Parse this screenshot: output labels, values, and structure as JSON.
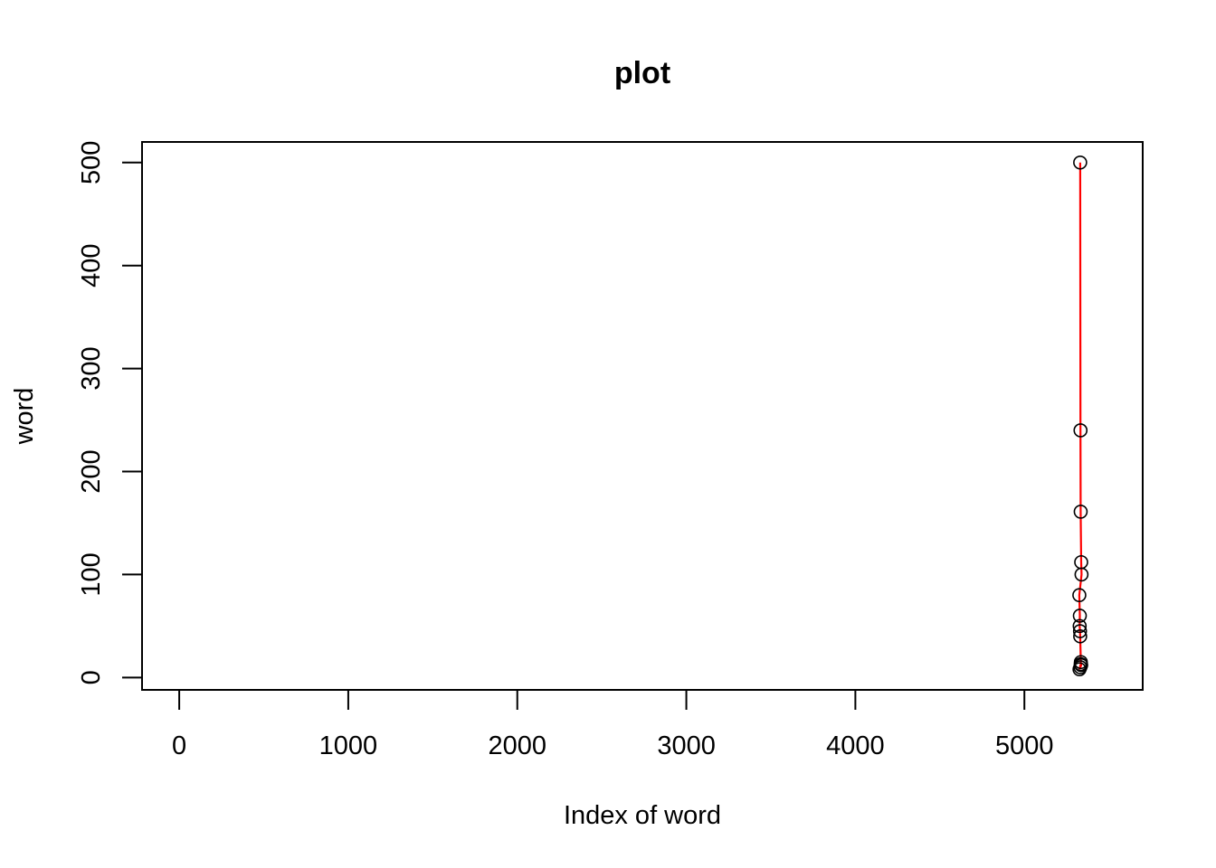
{
  "chart_data": {
    "type": "scatter",
    "title": "plot",
    "xlabel": "Index of word",
    "ylabel": "word",
    "xlim": [
      -220,
      5700
    ],
    "ylim": [
      -12,
      520
    ],
    "x_ticks": [
      0,
      1000,
      2000,
      3000,
      4000,
      5000
    ],
    "y_ticks": [
      0,
      100,
      200,
      300,
      400,
      500
    ],
    "x_tick_labels": [
      "0",
      "1000",
      "2000",
      "3000",
      "4000",
      "5000"
    ],
    "y_tick_labels": [
      "0",
      "100",
      "200",
      "300",
      "400",
      "500"
    ],
    "grid": false,
    "points": {
      "x": [
        5330,
        5332,
        5333,
        5336,
        5338,
        5325,
        5328,
        5327,
        5329,
        5330,
        5334,
        5336,
        5331,
        5326,
        5333
      ],
      "y": [
        500,
        240,
        161,
        112,
        100,
        80,
        60,
        50,
        45,
        40,
        15,
        12,
        10,
        8,
        13
      ]
    },
    "line": {
      "color": "#ff0000",
      "x": [
        5330,
        5332,
        5333,
        5336,
        5338,
        5325,
        5328,
        5327,
        5329,
        5330,
        5334,
        5336,
        5331,
        5326,
        5333
      ],
      "y": [
        500,
        240,
        161,
        112,
        100,
        80,
        60,
        50,
        45,
        40,
        15,
        12,
        10,
        8,
        13
      ]
    }
  }
}
